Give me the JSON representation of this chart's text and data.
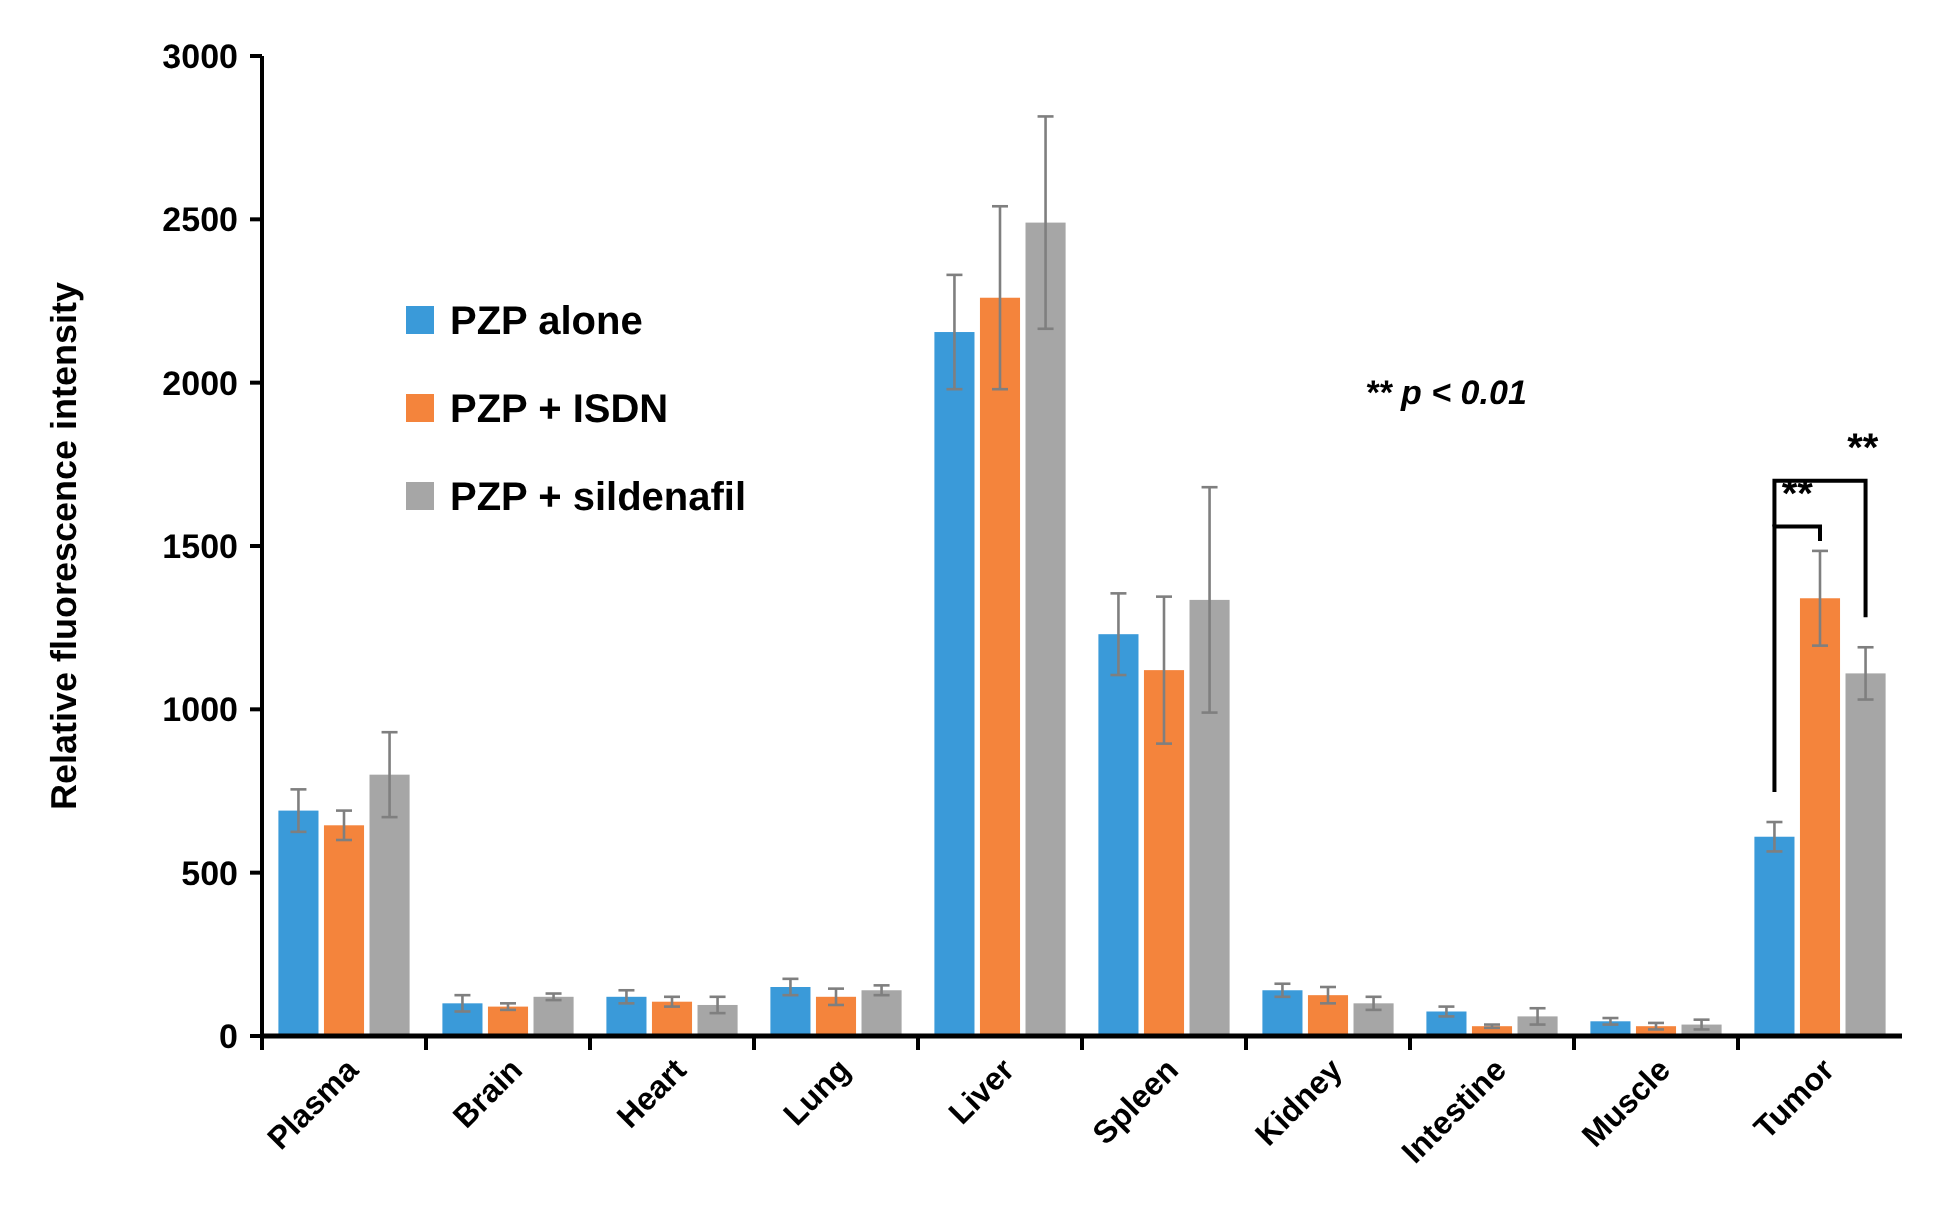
{
  "chart_data": {
    "type": "bar",
    "ylabel": "Relative fluorescence intensity",
    "categories": [
      "Plasma",
      "Brain",
      "Heart",
      "Lung",
      "Liver",
      "Spleen",
      "Kidney",
      "Intestine",
      "Muscle",
      "Tumor"
    ],
    "series": [
      {
        "name": "PZP alone",
        "color": "#3a9ad9",
        "values": [
          690,
          100,
          120,
          150,
          2155,
          1230,
          140,
          75,
          45,
          610
        ],
        "errors": [
          65,
          25,
          20,
          25,
          175,
          125,
          20,
          15,
          10,
          45
        ]
      },
      {
        "name": "PZP + ISDN",
        "color": "#f4843c",
        "values": [
          645,
          90,
          105,
          120,
          2260,
          1120,
          125,
          30,
          30,
          1340
        ],
        "errors": [
          45,
          10,
          15,
          25,
          280,
          225,
          25,
          5,
          10,
          145
        ]
      },
      {
        "name": "PZP + sildenafil",
        "color": "#a6a6a6",
        "values": [
          800,
          120,
          95,
          140,
          2490,
          1335,
          100,
          60,
          35,
          1110
        ],
        "errors": [
          130,
          10,
          25,
          15,
          325,
          345,
          20,
          25,
          15,
          80
        ]
      }
    ],
    "ylim": [
      0,
      3000
    ],
    "yticks": [
      0,
      500,
      1000,
      1500,
      2000,
      2500,
      3000
    ],
    "grid": false,
    "legend": "top left",
    "annotations": [
      "** p < 0.01",
      "**",
      "**"
    ]
  }
}
